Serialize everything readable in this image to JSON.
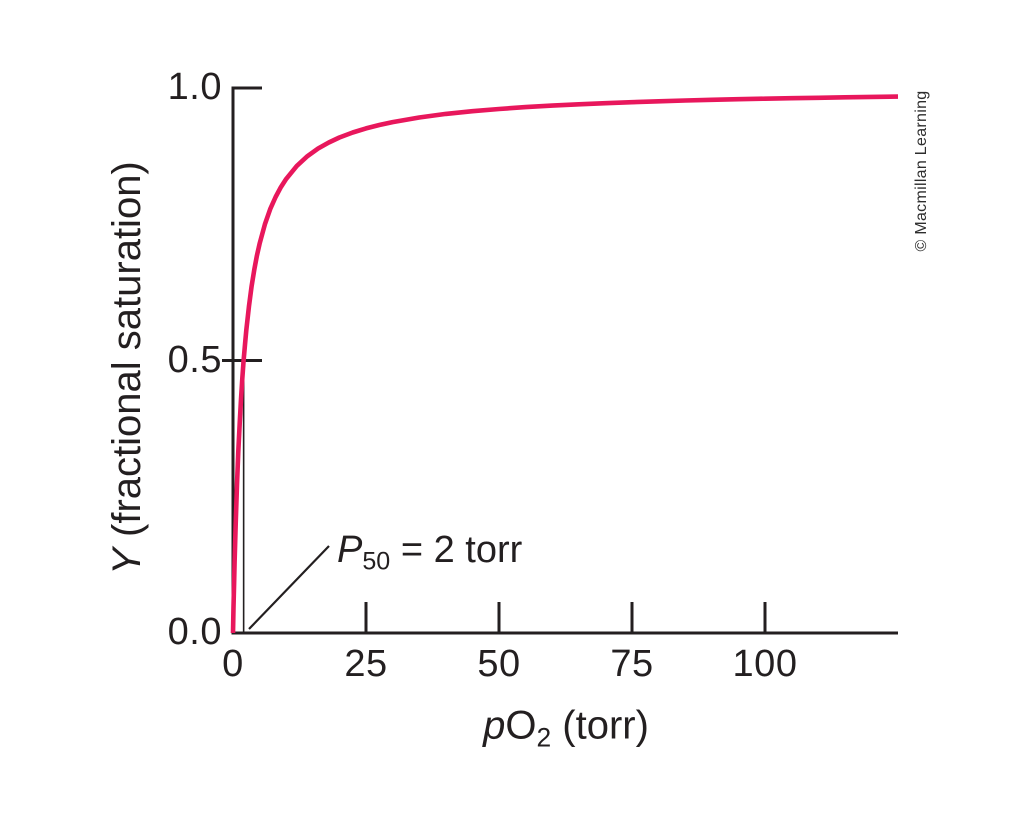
{
  "figure": {
    "watermark": "© Macmillan Learning"
  },
  "labels": {
    "ylabel_italic": "Y",
    "ylabel_rest": " (fractional saturation)",
    "xlabel_italic": "p",
    "xlabel_main": "O",
    "xlabel_sub": "2",
    "xlabel_rest": " (torr)",
    "annotation_symbol": "P",
    "annotation_sub": "50",
    "annotation_rest": " = 2 torr"
  },
  "chart_data": {
    "type": "line",
    "xlabel": "pO2 (torr)",
    "ylabel": "Y (fractional saturation)",
    "xlim": [
      0,
      125
    ],
    "ylim": [
      0.0,
      1.0
    ],
    "x_ticks": [
      0,
      25,
      50,
      75,
      100
    ],
    "x_tick_labels": [
      "0",
      "25",
      "50",
      "75",
      "100"
    ],
    "y_ticks": [
      0.0,
      0.5,
      1.0
    ],
    "y_tick_labels": [
      "0.0",
      "0.5",
      "1.0"
    ],
    "grid": false,
    "legend": false,
    "axis_color": "#231f20",
    "annotation": {
      "label": "P50 = 2 torr",
      "p50_torr": 2,
      "marker_line": {
        "x": 2,
        "y_from": 0.0,
        "y_to": 0.5
      }
    },
    "series": [
      {
        "name": "fractional-saturation-curve",
        "color": "#e8175c",
        "equation": "Y = pO2 / (pO2 + 2)",
        "points": [
          [
            0,
            0
          ],
          [
            0.1,
            0.0476
          ],
          [
            0.2,
            0.0909
          ],
          [
            0.3,
            0.1304
          ],
          [
            0.5,
            0.2
          ],
          [
            0.75,
            0.2727
          ],
          [
            1,
            0.3333
          ],
          [
            1.25,
            0.3846
          ],
          [
            1.5,
            0.4286
          ],
          [
            1.75,
            0.4667
          ],
          [
            2,
            0.5
          ],
          [
            2.25,
            0.5294
          ],
          [
            2.5,
            0.5556
          ],
          [
            3,
            0.6
          ],
          [
            3.5,
            0.6364
          ],
          [
            4,
            0.6667
          ],
          [
            4.5,
            0.6923
          ],
          [
            5,
            0.7143
          ],
          [
            6,
            0.75
          ],
          [
            7,
            0.7778
          ],
          [
            8,
            0.8
          ],
          [
            9,
            0.8182
          ],
          [
            10,
            0.8333
          ],
          [
            12,
            0.8571
          ],
          [
            14,
            0.875
          ],
          [
            16,
            0.8889
          ],
          [
            18,
            0.9
          ],
          [
            20,
            0.9091
          ],
          [
            22.5,
            0.9184
          ],
          [
            25,
            0.9259
          ],
          [
            27.5,
            0.9322
          ],
          [
            30,
            0.9375
          ],
          [
            35,
            0.9459
          ],
          [
            40,
            0.9524
          ],
          [
            45,
            0.9574
          ],
          [
            50,
            0.9615
          ],
          [
            55,
            0.9649
          ],
          [
            60,
            0.9677
          ],
          [
            65,
            0.9701
          ],
          [
            70,
            0.9722
          ],
          [
            75,
            0.974
          ],
          [
            80,
            0.9756
          ],
          [
            85,
            0.977
          ],
          [
            90,
            0.9783
          ],
          [
            95,
            0.9794
          ],
          [
            100,
            0.9804
          ],
          [
            105,
            0.9813
          ],
          [
            110,
            0.9821
          ],
          [
            115,
            0.9829
          ],
          [
            120,
            0.9836
          ],
          [
            125,
            0.9843
          ]
        ]
      }
    ]
  }
}
